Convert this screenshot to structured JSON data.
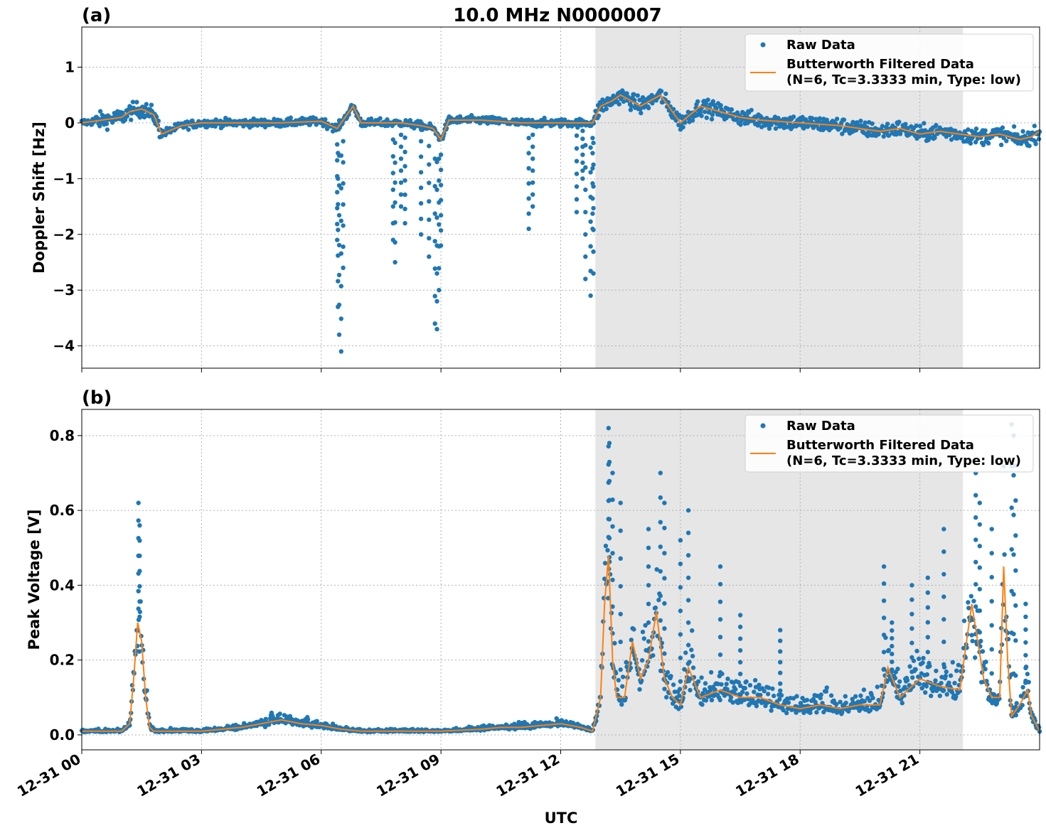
{
  "figure": {
    "title": "10.0 MHz N0000007",
    "xlabel": "UTC",
    "x_ticks": [
      "12-31 00",
      "12-31 03",
      "12-31 06",
      "12-31 09",
      "12-31 12",
      "12-31 15",
      "12-31 18",
      "12-31 21"
    ],
    "shaded_interval_hours": [
      12.87,
      22.08
    ],
    "x_range_hours": [
      0,
      24
    ]
  },
  "colors": {
    "raw": "#1f77b4",
    "filtered": "#ff7f0e",
    "shade": "#e6e6e6",
    "grid": "#b0b0b0"
  },
  "legend": {
    "raw_label": "Raw Data",
    "filtered_label_line1": "Butterworth Filtered Data",
    "filtered_label_line2": "(N=6, Tc=3.3333 min, Type: low)",
    "placement": "upper right"
  },
  "chart_data": [
    {
      "panel": "(a)",
      "type": "scatter",
      "ylabel": "Doppler Shift [Hz]",
      "ylim": [
        -4.4,
        1.72
      ],
      "y_ticks": [
        1,
        0,
        -1,
        -2,
        -3,
        -4
      ],
      "y_tick_labels": [
        "1",
        "0",
        "−1",
        "−2",
        "−3",
        "−4"
      ],
      "grid": true,
      "series": [
        {
          "name": "Butterworth Filtered Data",
          "kind": "line",
          "x_hours": [
            0,
            0.5,
            1.0,
            1.2,
            1.5,
            1.8,
            2.0,
            2.5,
            3.0,
            4.0,
            5.0,
            6.0,
            6.4,
            6.8,
            7.0,
            8.0,
            8.5,
            8.8,
            9.0,
            9.2,
            10.0,
            11.0,
            12.0,
            12.8,
            13.0,
            13.3,
            13.5,
            14.0,
            14.5,
            15.0,
            15.5,
            16.0,
            16.5,
            17.0,
            18.0,
            19.0,
            20.0,
            20.5,
            21.0,
            21.5,
            22.0,
            22.5,
            23.0,
            23.5,
            23.8,
            24.0
          ],
          "y": [
            0.0,
            0.05,
            0.1,
            0.2,
            0.25,
            0.15,
            -0.2,
            -0.05,
            0.0,
            0.0,
            0.0,
            0.03,
            -0.1,
            0.3,
            0.0,
            0.0,
            -0.05,
            -0.1,
            -0.3,
            0.05,
            0.05,
            0.0,
            0.0,
            0.0,
            0.3,
            0.4,
            0.5,
            0.3,
            0.5,
            0.0,
            0.3,
            0.2,
            0.1,
            0.05,
            0.0,
            -0.05,
            -0.15,
            -0.1,
            -0.2,
            -0.15,
            -0.2,
            -0.25,
            -0.2,
            -0.3,
            -0.25,
            -0.15
          ]
        },
        {
          "name": "Raw Data",
          "kind": "points",
          "outliers_x_hours": [
            6.4,
            6.42,
            6.45,
            6.5,
            6.55,
            7.8,
            7.85,
            8.0,
            8.1,
            8.5,
            8.7,
            8.85,
            8.9,
            8.95,
            9.0,
            11.2,
            11.3,
            12.4,
            12.55,
            12.62,
            12.75,
            12.8,
            12.82
          ],
          "outliers_y": [
            -2.1,
            -3.3,
            -3.8,
            -4.1,
            -2.6,
            -2.1,
            -2.5,
            -1.5,
            -1.8,
            -2.0,
            -2.4,
            -3.6,
            -3.7,
            -3.0,
            -2.2,
            -1.9,
            -1.5,
            -1.6,
            -1.0,
            -2.8,
            -3.1,
            -1.9,
            -2.7
          ]
        }
      ]
    },
    {
      "panel": "(b)",
      "type": "scatter",
      "ylabel": "Peak Voltage [V]",
      "ylim": [
        -0.04,
        0.87
      ],
      "y_ticks": [
        0.0,
        0.2,
        0.4,
        0.6,
        0.8
      ],
      "y_tick_labels": [
        "0.0",
        "0.2",
        "0.4",
        "0.6",
        "0.8"
      ],
      "grid": true,
      "series": [
        {
          "name": "Butterworth Filtered Data",
          "kind": "line",
          "x_hours": [
            0,
            0.5,
            1.0,
            1.2,
            1.3,
            1.4,
            1.5,
            1.6,
            1.7,
            1.8,
            2.0,
            3.0,
            4.0,
            4.5,
            5.0,
            5.5,
            6.0,
            6.5,
            7.0,
            8.0,
            9.0,
            10.0,
            10.5,
            11.0,
            11.5,
            12.0,
            12.5,
            12.8,
            13.0,
            13.1,
            13.2,
            13.3,
            13.4,
            13.6,
            13.8,
            14.0,
            14.2,
            14.4,
            14.6,
            14.8,
            15.0,
            15.2,
            15.5,
            16.0,
            16.5,
            17.0,
            17.5,
            18.0,
            18.5,
            19.0,
            19.5,
            20.0,
            20.2,
            20.5,
            21.0,
            21.5,
            22.0,
            22.3,
            22.6,
            22.8,
            23.0,
            23.1,
            23.2,
            23.3,
            23.5,
            23.7,
            23.8,
            24.0
          ],
          "y": [
            0.01,
            0.01,
            0.01,
            0.03,
            0.15,
            0.3,
            0.25,
            0.1,
            0.02,
            0.01,
            0.01,
            0.01,
            0.02,
            0.03,
            0.04,
            0.03,
            0.025,
            0.015,
            0.01,
            0.01,
            0.01,
            0.015,
            0.02,
            0.02,
            0.025,
            0.03,
            0.02,
            0.01,
            0.1,
            0.35,
            0.48,
            0.2,
            0.1,
            0.1,
            0.25,
            0.15,
            0.2,
            0.33,
            0.15,
            0.1,
            0.08,
            0.18,
            0.1,
            0.12,
            0.1,
            0.1,
            0.08,
            0.07,
            0.08,
            0.07,
            0.08,
            0.08,
            0.18,
            0.1,
            0.15,
            0.13,
            0.12,
            0.35,
            0.15,
            0.1,
            0.1,
            0.45,
            0.2,
            0.05,
            0.08,
            0.12,
            0.05,
            0.01
          ]
        },
        {
          "name": "Raw Data",
          "kind": "points",
          "peaks_x_hours": [
            1.42,
            1.45,
            13.2,
            13.22,
            13.3,
            13.5,
            14.2,
            14.5,
            14.6,
            15.0,
            15.2,
            16.0,
            16.5,
            17.5,
            20.1,
            20.3,
            20.8,
            21.2,
            21.6,
            22.4,
            22.5,
            22.8,
            23.3,
            23.35,
            23.4,
            23.65
          ],
          "peaks_y": [
            0.62,
            0.56,
            0.82,
            0.78,
            0.7,
            0.62,
            0.55,
            0.7,
            0.62,
            0.52,
            0.6,
            0.45,
            0.32,
            0.28,
            0.45,
            0.3,
            0.4,
            0.42,
            0.55,
            0.7,
            0.62,
            0.55,
            0.83,
            0.8,
            0.72,
            0.35
          ]
        }
      ]
    }
  ]
}
